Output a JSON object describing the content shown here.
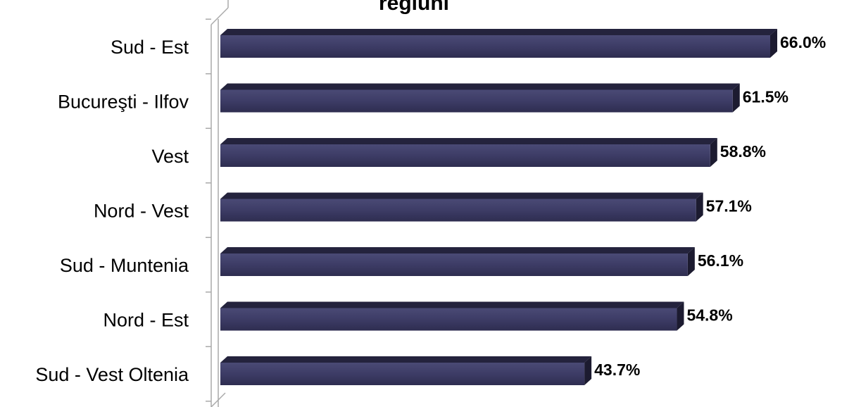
{
  "chart_data": {
    "type": "bar",
    "orientation": "horizontal",
    "title": "regiuni",
    "categories": [
      "Sud - Est",
      "Bucureşti - Ilfov",
      "Vest",
      "Nord - Vest",
      "Sud - Muntenia",
      "Nord - Est",
      "Sud - Vest Oltenia"
    ],
    "values": [
      66.0,
      61.5,
      58.8,
      57.1,
      56.1,
      54.8,
      43.7
    ],
    "value_labels": [
      "66.0%",
      "61.5%",
      "58.8%",
      "57.1%",
      "56.1%",
      "54.8%",
      "43.7%"
    ],
    "unit": "%",
    "xlim": [
      0,
      66.0
    ],
    "grid": false,
    "bar_color": "#3b3a61"
  }
}
